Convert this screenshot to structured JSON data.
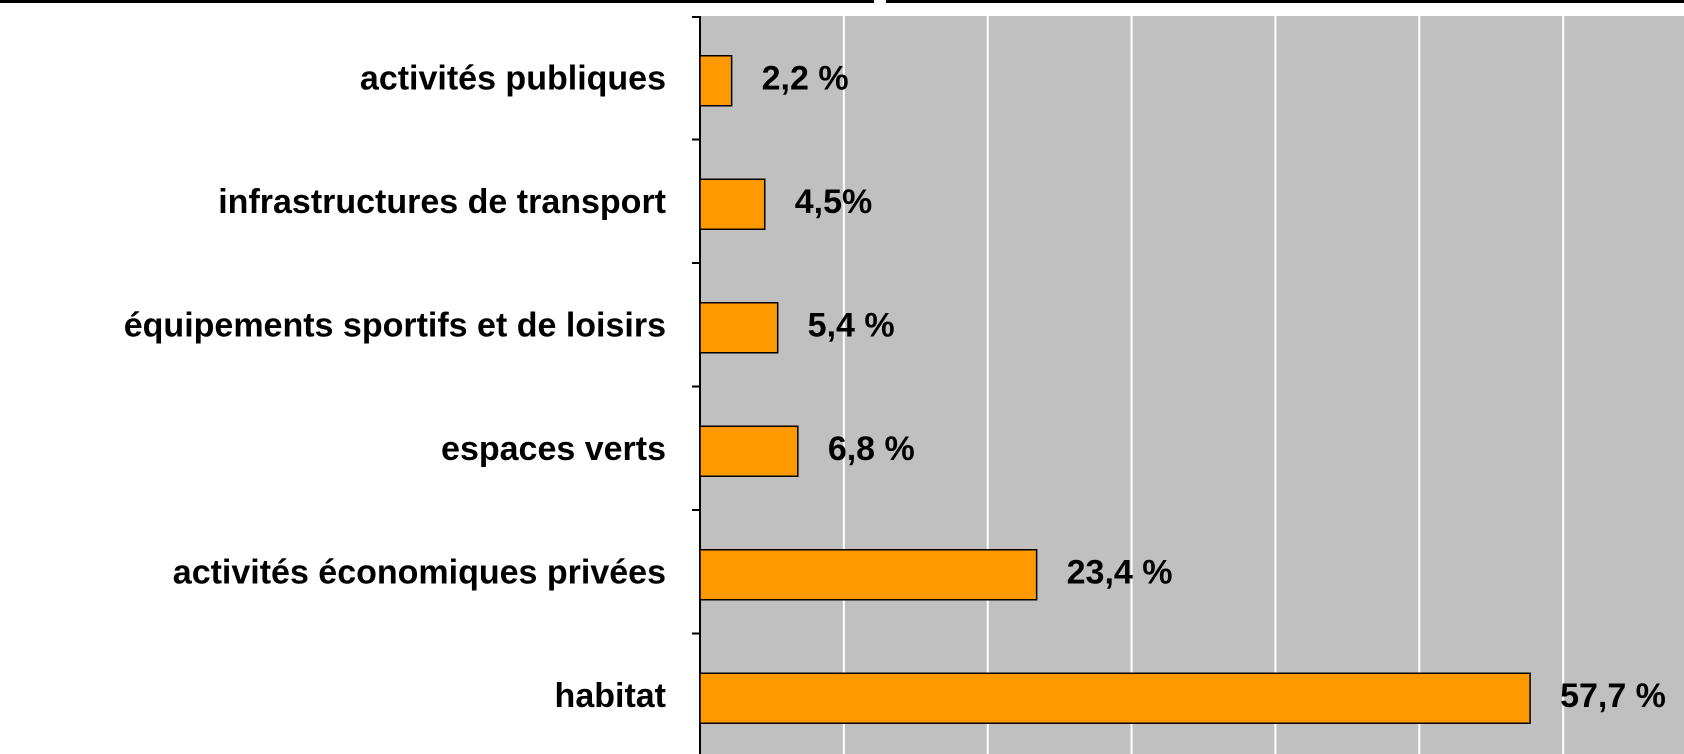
{
  "chart_data": {
    "type": "barh",
    "categories": [
      "activités publiques",
      "infrastructures de transport",
      "équipements sportifs et de loisirs",
      "espaces verts",
      "activités économiques privées",
      "habitat"
    ],
    "values": [
      2.2,
      4.5,
      5.4,
      6.8,
      23.4,
      57.7
    ],
    "value_labels": [
      "2,2 %",
      "4,5%",
      "5,4 %",
      "6,8 %",
      "23,4 %",
      "57,7 %"
    ],
    "color": "#ff9900",
    "xlim": [
      0,
      68.4
    ],
    "xticks": [
      10,
      20,
      30,
      40,
      50,
      60
    ],
    "grid": true
  }
}
